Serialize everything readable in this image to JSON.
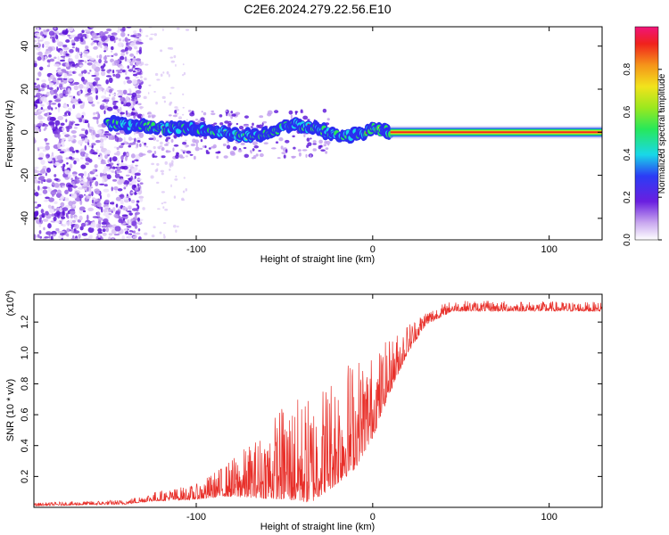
{
  "title": "C2E6.2024.279.22.56.E10",
  "colors": {
    "snr_line": "#e8302a",
    "frame": "#000000"
  },
  "chart_data": [
    {
      "type": "heatmap",
      "name": "spectrogram",
      "xlabel": "Height of straight line (km)",
      "ylabel": "Frequency (Hz)",
      "xlim": [
        -192,
        130
      ],
      "ylim": [
        -50,
        49
      ],
      "xticks": [
        -100,
        0,
        100
      ],
      "xtick_labels": [
        "-100",
        "0",
        "100"
      ],
      "yticks": [
        -40,
        -20,
        0,
        20,
        40
      ],
      "ytick_labels": [
        "-40",
        "-20",
        "0",
        "20",
        "40"
      ],
      "colorbar": {
        "label": "Normalized spectral amplitude",
        "range": [
          0,
          1
        ],
        "ticks": [
          0.0,
          0.2,
          0.4,
          0.6,
          0.8
        ],
        "tick_labels": [
          "0.0",
          "0.2",
          "0.4",
          "0.6",
          "0.8"
        ]
      },
      "signal_track": [
        {
          "x": -150,
          "y": 4
        },
        {
          "x": -135,
          "y": 3
        },
        {
          "x": -120,
          "y": 2
        },
        {
          "x": -105,
          "y": 2
        },
        {
          "x": -90,
          "y": 1
        },
        {
          "x": -75,
          "y": -2
        },
        {
          "x": -60,
          "y": -1
        },
        {
          "x": -45,
          "y": 4
        },
        {
          "x": -30,
          "y": 1
        },
        {
          "x": -18,
          "y": -2
        },
        {
          "x": -8,
          "y": -1
        },
        {
          "x": 0,
          "y": 2
        },
        {
          "x": 10,
          "y": 0
        },
        {
          "x": 130,
          "y": 0
        }
      ],
      "noise_region_end_x": -135,
      "steady_tone_start_x": 10,
      "steady_tone_y": 0
    },
    {
      "type": "line",
      "name": "snr",
      "xlabel": "Height of straight line (km)",
      "ylabel": "SNR (10 * v/v)",
      "y_multiplier_label": "(x10",
      "y_multiplier_exp": "4",
      "y_multiplier_close": ")",
      "xlim": [
        -192,
        130
      ],
      "ylim": [
        0,
        1.38
      ],
      "xticks": [
        -100,
        0,
        100
      ],
      "xtick_labels": [
        "-100",
        "0",
        "100"
      ],
      "yticks": [
        0.2,
        0.4,
        0.6,
        0.8,
        1.0,
        1.2
      ],
      "ytick_labels": [
        "0.2",
        "0.4",
        "0.6",
        "0.8",
        "1.0",
        "1.2"
      ],
      "series": [
        {
          "envelope": [
            {
              "x": -192,
              "base": 0.01,
              "spread": 0.02
            },
            {
              "x": -140,
              "base": 0.02,
              "spread": 0.03
            },
            {
              "x": -125,
              "base": 0.04,
              "spread": 0.06
            },
            {
              "x": -100,
              "base": 0.05,
              "spread": 0.1
            },
            {
              "x": -85,
              "base": 0.07,
              "spread": 0.2
            },
            {
              "x": -65,
              "base": 0.06,
              "spread": 0.4
            },
            {
              "x": -50,
              "base": 0.05,
              "spread": 0.65
            },
            {
              "x": -35,
              "base": 0.03,
              "spread": 0.7
            },
            {
              "x": -20,
              "base": 0.15,
              "spread": 0.8
            },
            {
              "x": -10,
              "base": 0.25,
              "spread": 0.75
            },
            {
              "x": 0,
              "base": 0.45,
              "spread": 0.55
            },
            {
              "x": 10,
              "base": 0.75,
              "spread": 0.35
            },
            {
              "x": 20,
              "base": 1.0,
              "spread": 0.2
            },
            {
              "x": 30,
              "base": 1.18,
              "spread": 0.1
            },
            {
              "x": 45,
              "base": 1.27,
              "spread": 0.07
            },
            {
              "x": 130,
              "base": 1.27,
              "spread": 0.06
            }
          ]
        }
      ]
    }
  ]
}
